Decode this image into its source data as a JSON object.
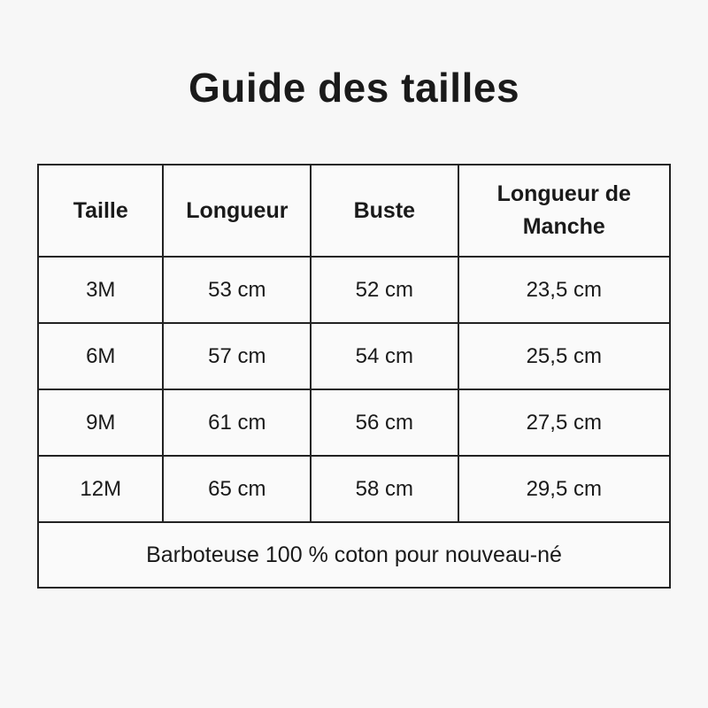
{
  "title": "Guide des tailles",
  "table": {
    "headers": [
      "Taille",
      "Longueur",
      "Buste",
      "Longueur de Manche"
    ],
    "rows": [
      [
        "3M",
        "53 cm",
        "52 cm",
        "23,5 cm"
      ],
      [
        "6M",
        "57 cm",
        "54 cm",
        "25,5 cm"
      ],
      [
        "9M",
        "61 cm",
        "56 cm",
        "27,5 cm"
      ],
      [
        "12M",
        "65 cm",
        "58 cm",
        "29,5 cm"
      ]
    ],
    "footer": "Barboteuse 100 % coton pour nouveau-né"
  }
}
